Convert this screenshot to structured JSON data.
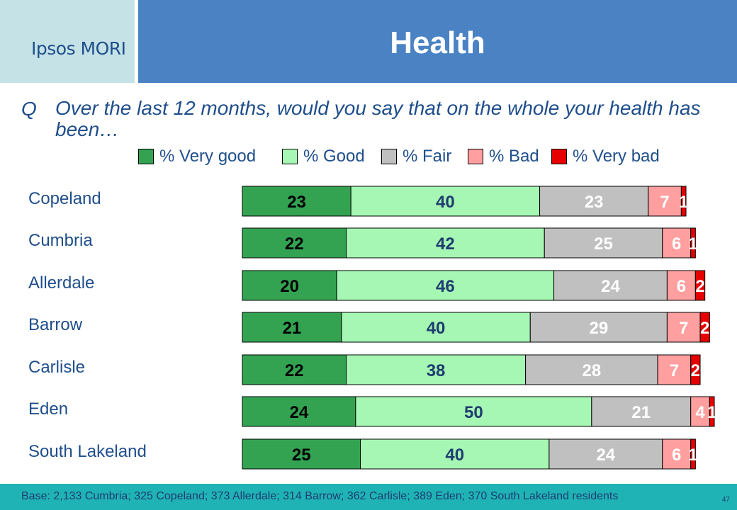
{
  "logo": "Ipsos MORI",
  "title": "Health",
  "question": {
    "label": "Q",
    "text": "Over the last 12 months, would you say that on the whole your health has been…"
  },
  "footer": {
    "base": "Base: 2,133 Cumbria; 325 Copeland; 373 Allerdale; 314 Barrow; 362 Carlisle; 389 Eden; 370 South Lakeland residents",
    "page": "47"
  },
  "chart_data": {
    "type": "bar",
    "orientation": "horizontal",
    "stacked": true,
    "percent": true,
    "xlim": [
      0,
      100
    ],
    "grid": false,
    "legend_position": "top",
    "categories": [
      "Copeland",
      "Cumbria",
      "Allerdale",
      "Barrow",
      "Carlisle",
      "Eden",
      "South Lakeland"
    ],
    "series": [
      {
        "name": "% Very good",
        "color": "#33a352",
        "values": [
          23,
          22,
          20,
          21,
          22,
          24,
          25
        ]
      },
      {
        "name": "% Good",
        "color": "#a6f7b4",
        "values": [
          40,
          42,
          46,
          40,
          38,
          50,
          40
        ]
      },
      {
        "name": "% Fair",
        "color": "#c0c0c0",
        "values": [
          23,
          25,
          24,
          29,
          28,
          21,
          24
        ]
      },
      {
        "name": "% Bad",
        "color": "#ff9f9f",
        "values": [
          7,
          6,
          6,
          7,
          7,
          4,
          6
        ]
      },
      {
        "name": "% Very bad",
        "color": "#e60000",
        "values": [
          1,
          1,
          2,
          2,
          2,
          1,
          1
        ]
      }
    ],
    "label_colors": [
      "#000000",
      "#1f3d70",
      "#ffffff",
      "#ffffff",
      "#ffffff"
    ]
  }
}
